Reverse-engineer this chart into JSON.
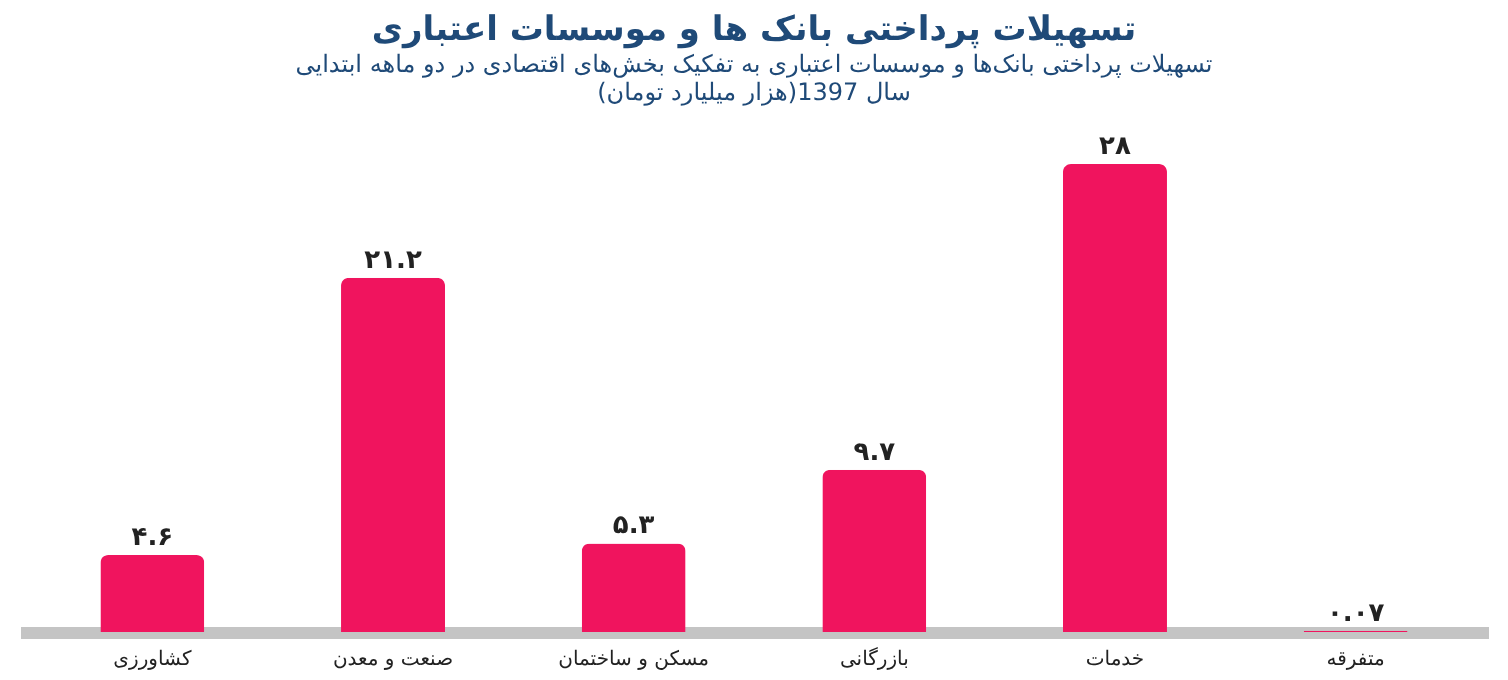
{
  "chart_data": {
    "type": "bar",
    "title": "تسهیلات پرداختی بانک ها و موسسات اعتباری",
    "subtitle": [
      "تسهیلات پرداختی بانک‌ها و موسسات اعتباری به تفکیک بخش‌های اقتصادی در دو ماهه ابتدایی",
      "سال 1397(هزار میلیارد تومان)"
    ],
    "categories": [
      "کشاورزی",
      "صنعت و معدن",
      "مسکن و ساختمان",
      "بازرگانی",
      "خدمات",
      "متفرقه"
    ],
    "values": [
      4.6,
      21.2,
      5.3,
      9.7,
      28,
      0.07
    ],
    "value_labels": [
      "۴.۶",
      "۲۱.۲",
      "۵.۳",
      "۹.۷",
      "۲۸",
      "۰.۰۷"
    ],
    "color": "#f0145e",
    "grid": false
  }
}
